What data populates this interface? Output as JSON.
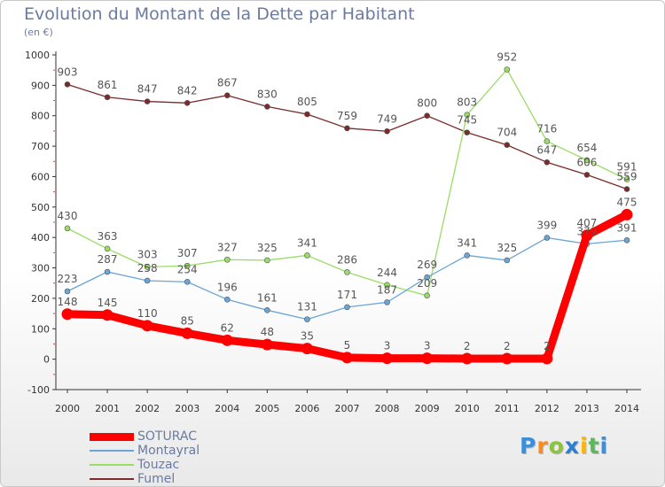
{
  "chart_data": {
    "type": "line",
    "title": "Evolution du Montant de la Dette par Habitant",
    "subtitle": "(en €)",
    "xlabel": "",
    "ylabel": "",
    "x": [
      2000,
      2001,
      2002,
      2003,
      2004,
      2005,
      2006,
      2007,
      2008,
      2009,
      2010,
      2011,
      2012,
      2013,
      2014
    ],
    "ylim": [
      -100,
      1000
    ],
    "yticks": [
      -100,
      0,
      100,
      200,
      300,
      400,
      500,
      600,
      700,
      800,
      900,
      1000
    ],
    "grid": false,
    "legend_position": "bottom-left",
    "series": [
      {
        "name": "Fumel",
        "color": "#7a2b2b",
        "values": [
          903,
          861,
          847,
          842,
          867,
          830,
          805,
          759,
          749,
          800,
          745,
          704,
          647,
          606,
          559
        ]
      },
      {
        "name": "Touzac",
        "color": "#99dd66",
        "values": [
          430,
          363,
          303,
          307,
          327,
          325,
          341,
          286,
          244,
          209,
          803,
          952,
          716,
          654,
          591
        ]
      },
      {
        "name": "Montayral",
        "color": "#6aa5d6",
        "values": [
          223,
          287,
          258,
          254,
          196,
          161,
          131,
          171,
          187,
          269,
          341,
          325,
          399,
          379,
          391
        ]
      },
      {
        "name": "SOTURAC",
        "color": "#ff0000",
        "values": [
          148,
          145,
          110,
          85,
          62,
          48,
          35,
          5,
          3,
          3,
          2,
          2,
          2,
          407,
          475
        ]
      }
    ]
  },
  "legend": {
    "items": [
      {
        "label": "SOTURAC",
        "color": "#ff0000"
      },
      {
        "label": "Montayral",
        "color": "#6aa5d6"
      },
      {
        "label": "Touzac",
        "color": "#99dd66"
      },
      {
        "label": "Fumel",
        "color": "#7a2b2b"
      }
    ]
  },
  "logo": {
    "letters": [
      "P",
      "r",
      "o",
      "x",
      "i",
      "t",
      "i"
    ],
    "colors": [
      "#3b8fd8",
      "#ff8a1a",
      "#8bc43f",
      "#2a7fd0",
      "#ffb400",
      "#5cb85c",
      "#3b8fd8"
    ]
  }
}
